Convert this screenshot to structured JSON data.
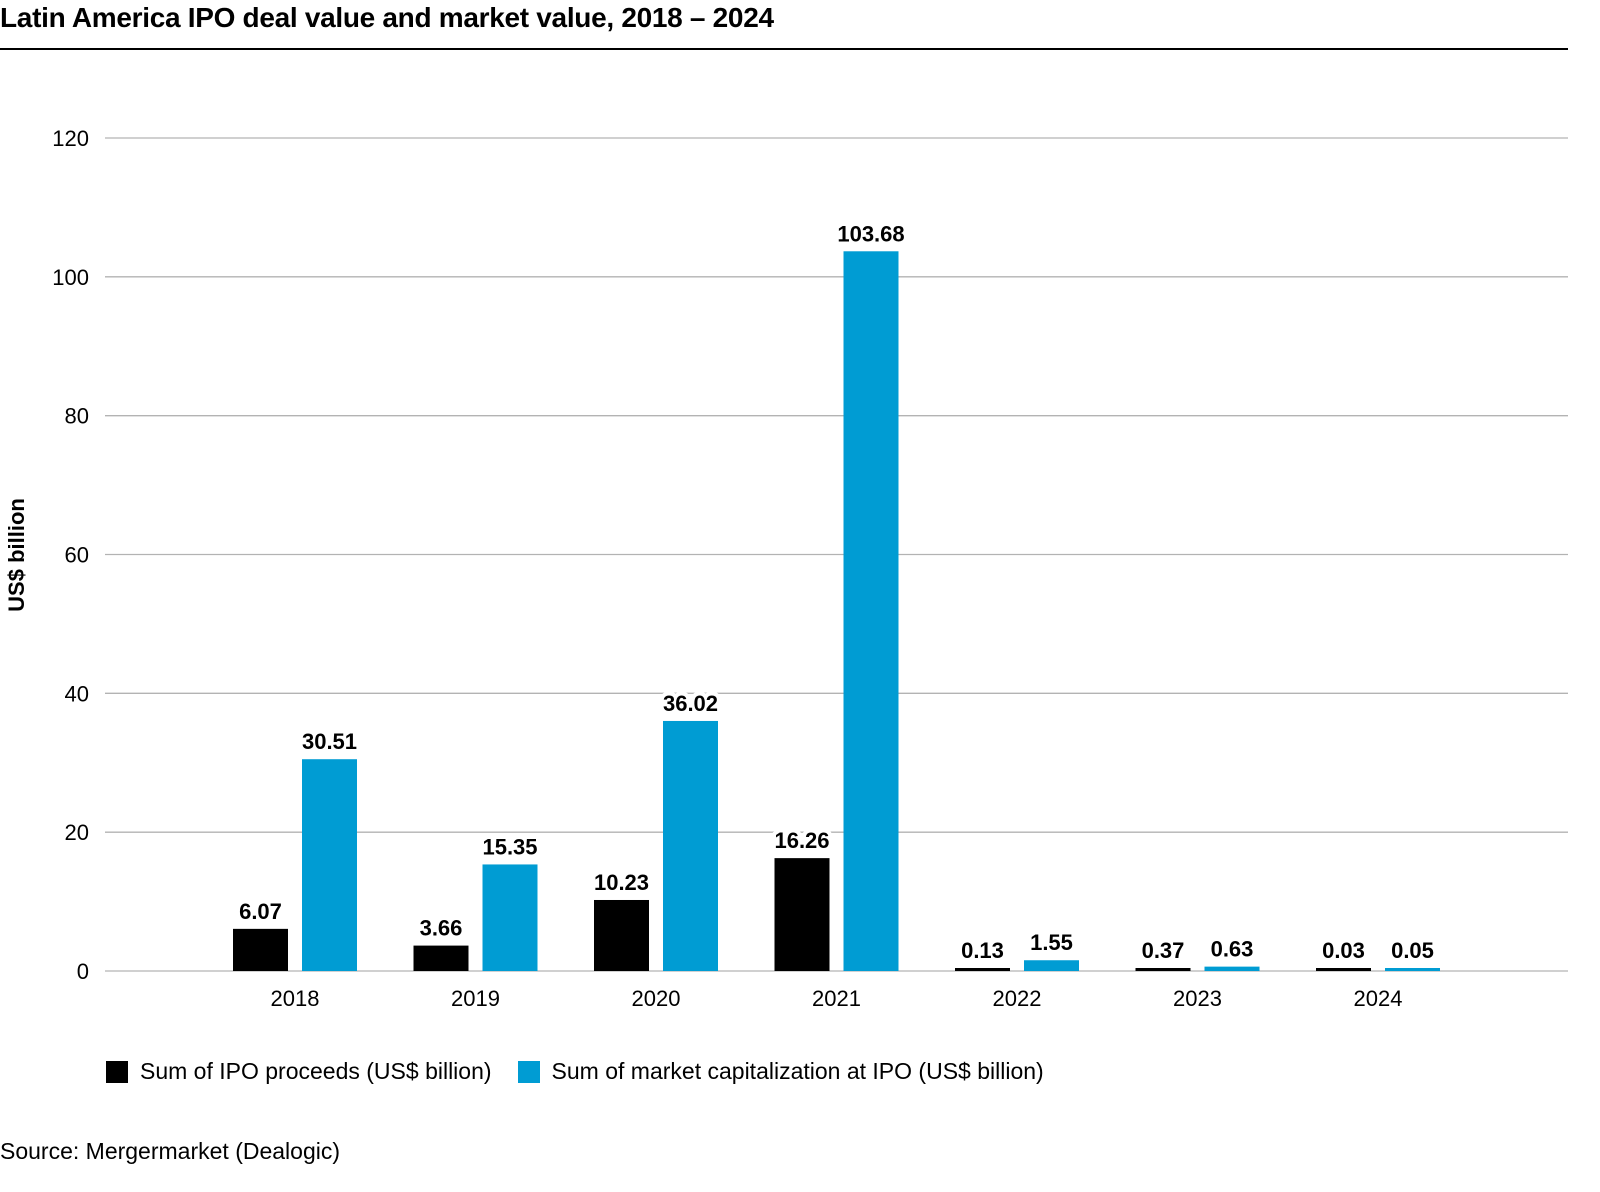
{
  "chart_data": {
    "type": "bar",
    "title": "Latin America IPO deal value and market value, 2018 – 2024",
    "ylabel": "US$ billion",
    "xlabel": "",
    "ylim": [
      0,
      120
    ],
    "yticks": [
      0,
      20,
      40,
      60,
      80,
      100,
      120
    ],
    "grid": true,
    "legend_position": "bottom-left",
    "categories": [
      "2018",
      "2019",
      "2020",
      "2021",
      "2022",
      "2023",
      "2024"
    ],
    "series": [
      {
        "name": "Sum of IPO proceeds (US$ billion)",
        "color": "#000000",
        "values": [
          6.07,
          3.66,
          10.23,
          16.26,
          0.13,
          0.37,
          0.03
        ]
      },
      {
        "name": "Sum of market capitalization at IPO (US$ billion)",
        "color": "#009CD3",
        "values": [
          30.51,
          15.35,
          36.02,
          103.68,
          1.55,
          0.63,
          0.05
        ]
      }
    ],
    "data_labels": [
      [
        "6.07",
        "3.66",
        "10.23",
        "16.26",
        "0.13",
        "0.37",
        "0.03"
      ],
      [
        "30.51",
        "15.35",
        "36.02",
        "103.68",
        "1.55",
        "0.63",
        "0.05"
      ]
    ]
  },
  "source": "Source: Mergermarket (Dealogic)"
}
